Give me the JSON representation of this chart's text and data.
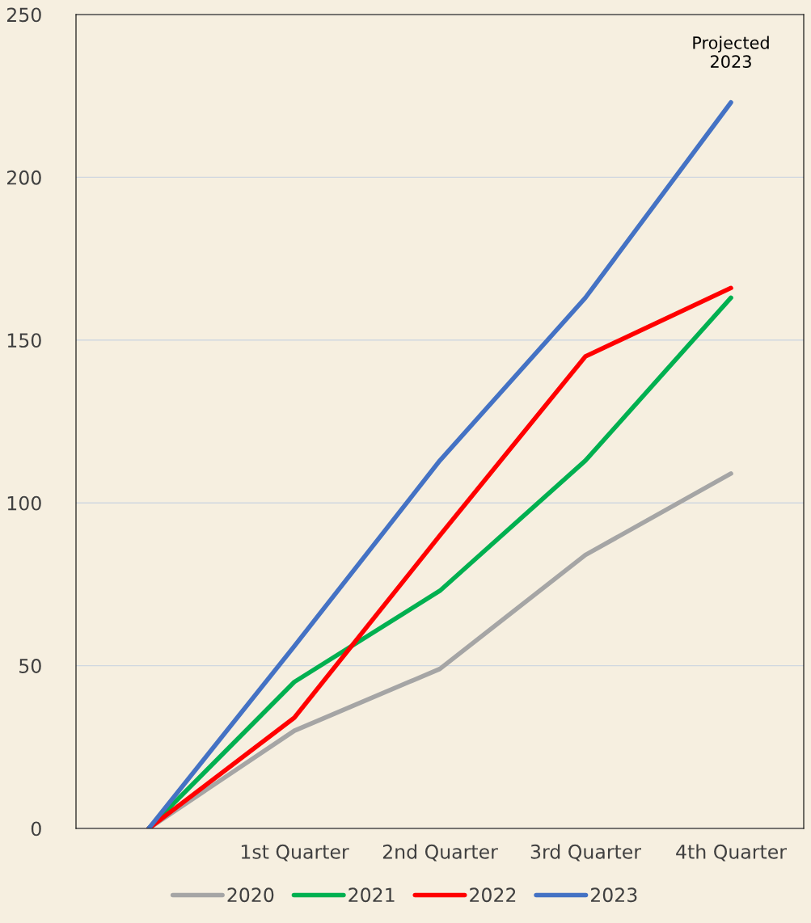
{
  "chart_data": {
    "type": "line",
    "categories": [
      null,
      "1st Quarter",
      "2nd Quarter",
      "3rd Quarter",
      "4th Quarter"
    ],
    "series": [
      {
        "name": "2020",
        "color": "#a5a5a5",
        "values": [
          0,
          30,
          49,
          84,
          109
        ]
      },
      {
        "name": "2021",
        "color": "#00b050",
        "values": [
          0,
          45,
          73,
          113,
          163
        ]
      },
      {
        "name": "2022",
        "color": "#ff0000",
        "values": [
          0,
          34,
          90,
          145,
          166
        ]
      },
      {
        "name": "2023",
        "color": "#4472c4",
        "values": [
          0,
          56,
          113,
          163,
          223
        ]
      }
    ],
    "ylim": [
      0,
      250
    ],
    "yticks": [
      0,
      50,
      100,
      150,
      200,
      250
    ],
    "grid": "y",
    "legend": "bottom",
    "marker": "none",
    "line_style": "solid",
    "annotations": [
      "Projected\n2023"
    ]
  }
}
